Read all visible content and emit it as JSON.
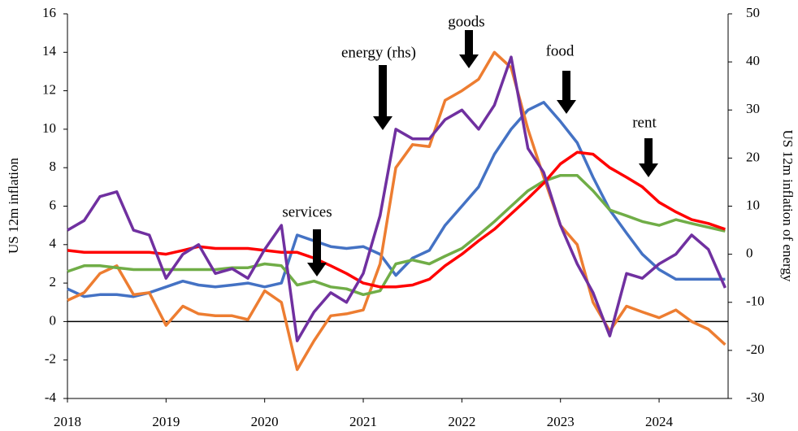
{
  "chart_data": {
    "type": "line",
    "y_label": "US 12m inflation",
    "y2_label": "US 12m inflation of energy",
    "x": [
      2018.0,
      2018.17,
      2018.33,
      2018.5,
      2018.67,
      2018.83,
      2019.0,
      2019.17,
      2019.33,
      2019.5,
      2019.67,
      2019.83,
      2020.0,
      2020.17,
      2020.33,
      2020.5,
      2020.67,
      2020.83,
      2021.0,
      2021.17,
      2021.33,
      2021.5,
      2021.67,
      2021.83,
      2022.0,
      2022.17,
      2022.33,
      2022.5,
      2022.67,
      2022.83,
      2023.0,
      2023.17,
      2023.33,
      2023.5,
      2023.67,
      2023.83,
      2024.0,
      2024.17,
      2024.33,
      2024.5,
      2024.67
    ],
    "xlim": [
      2018,
      2024.7
    ],
    "xticks": [
      2018,
      2019,
      2020,
      2021,
      2022,
      2023,
      2024
    ],
    "ylim": [
      -4,
      16
    ],
    "yticks": [
      -4,
      -2,
      0,
      2,
      4,
      6,
      8,
      10,
      12,
      14,
      16
    ],
    "y2lim": [
      -30,
      50
    ],
    "y2ticks": [
      -30,
      -20,
      -10,
      0,
      10,
      20,
      30,
      40,
      50
    ],
    "series": [
      {
        "name": "food",
        "color": "#4472c4",
        "values": [
          1.7,
          1.3,
          1.4,
          1.4,
          1.3,
          1.5,
          1.8,
          2.1,
          1.9,
          1.8,
          1.9,
          2.0,
          1.8,
          2.0,
          4.5,
          4.2,
          3.9,
          3.8,
          3.9,
          3.5,
          2.4,
          3.3,
          3.7,
          5.0,
          6.0,
          7.0,
          8.7,
          10.0,
          11.0,
          11.4,
          10.4,
          9.3,
          7.5,
          5.8,
          4.6,
          3.5,
          2.7,
          2.2,
          2.2,
          2.2,
          2.2
        ]
      },
      {
        "name": "goods",
        "color": "#ed7d31",
        "values": [
          1.1,
          1.5,
          2.5,
          2.9,
          1.4,
          1.5,
          -0.2,
          0.8,
          0.4,
          0.3,
          0.3,
          0.1,
          1.6,
          1.0,
          -2.5,
          -1.0,
          0.3,
          0.4,
          0.6,
          3.0,
          8.0,
          9.2,
          9.1,
          11.5,
          12.0,
          12.6,
          14.0,
          13.2,
          10.0,
          7.5,
          5.0,
          4.0,
          1.0,
          -0.5,
          0.8,
          0.5,
          0.2,
          0.6,
          0.0,
          -0.4,
          -1.2
        ]
      },
      {
        "name": "services",
        "color": "#70ad47",
        "values": [
          2.6,
          2.9,
          2.9,
          2.8,
          2.7,
          2.7,
          2.7,
          2.7,
          2.7,
          2.7,
          2.8,
          2.8,
          3.0,
          2.9,
          1.9,
          2.1,
          1.8,
          1.7,
          1.4,
          1.6,
          3.0,
          3.2,
          3.0,
          3.4,
          3.8,
          4.5,
          5.2,
          6.0,
          6.8,
          7.3,
          7.6,
          7.6,
          6.8,
          5.8,
          5.5,
          5.2,
          5.0,
          5.3,
          5.1,
          4.9,
          4.7
        ]
      },
      {
        "name": "rent",
        "color": "#ff0000",
        "values": [
          3.7,
          3.6,
          3.6,
          3.6,
          3.6,
          3.6,
          3.5,
          3.7,
          3.9,
          3.8,
          3.8,
          3.8,
          3.7,
          3.6,
          3.6,
          3.3,
          2.9,
          2.5,
          2.0,
          1.8,
          1.8,
          1.9,
          2.2,
          2.9,
          3.5,
          4.2,
          4.8,
          5.6,
          6.4,
          7.2,
          8.2,
          8.8,
          8.7,
          8.0,
          7.5,
          7.0,
          6.2,
          5.7,
          5.3,
          5.1,
          4.8
        ]
      },
      {
        "name": "energy (rhs)",
        "color": "#7030a0",
        "axis": "y2",
        "values": [
          5,
          7,
          12,
          13,
          5,
          4,
          -5,
          0,
          2,
          -4,
          -3,
          -5,
          1,
          6,
          -18,
          -12,
          -8,
          -10,
          -4,
          8,
          26,
          24,
          24,
          28,
          30,
          26,
          31,
          41,
          22,
          17,
          6,
          -2,
          -8,
          -17,
          -4,
          -5,
          -2,
          0,
          4,
          1,
          -7
        ]
      }
    ],
    "annotations": [
      "energy (rhs)",
      "goods",
      "food",
      "rent",
      "services"
    ]
  }
}
